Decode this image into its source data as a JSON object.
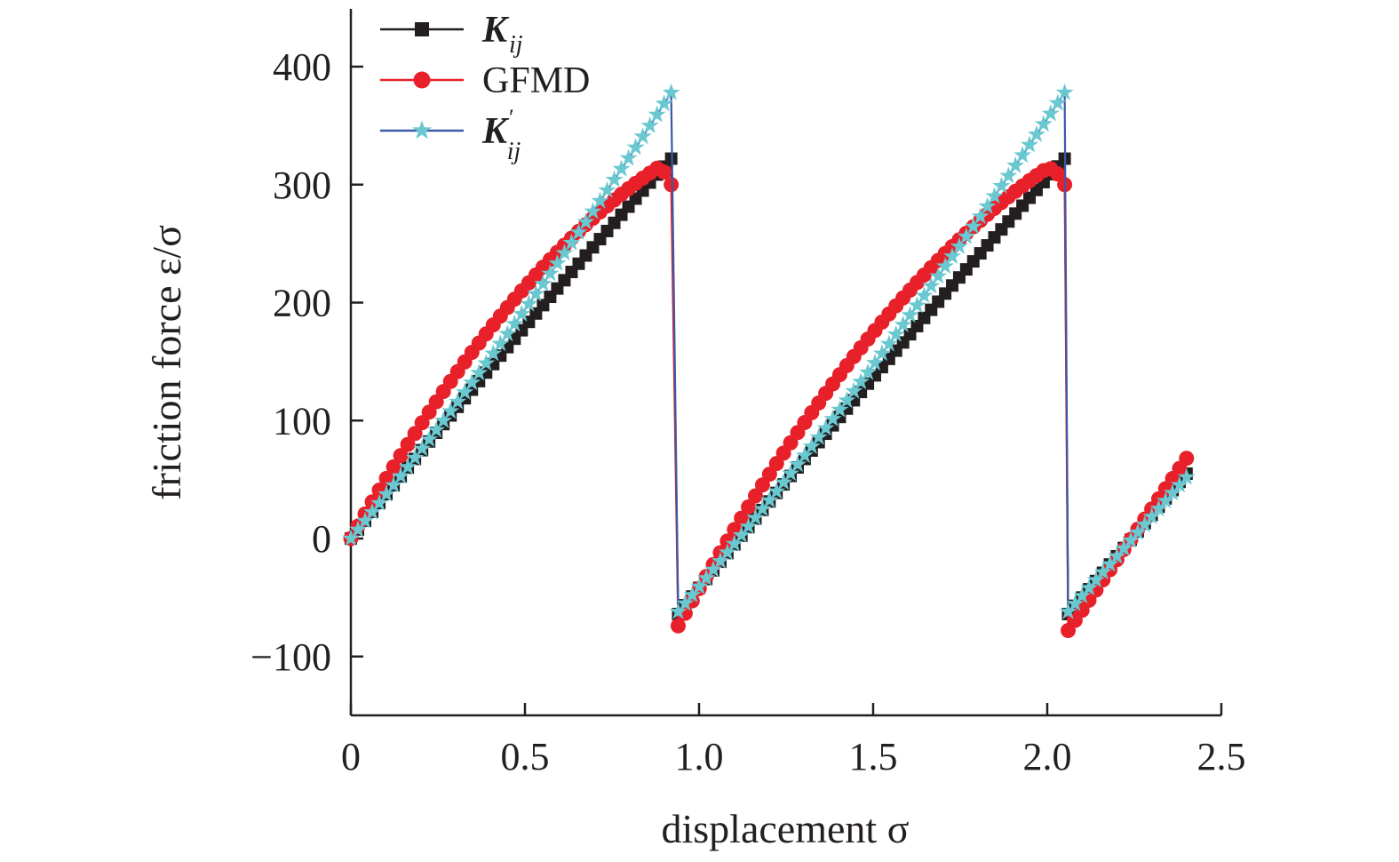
{
  "chart_data": {
    "type": "line",
    "xlabel": "displacement σ",
    "ylabel": "friction force ε/σ",
    "xlim": [
      0,
      2.5
    ],
    "ylim": [
      -150,
      450
    ],
    "xticks": [
      0,
      0.5,
      1.0,
      1.5,
      2.0,
      2.5
    ],
    "xtick_labels": [
      "0",
      "0.5",
      "1.0",
      "1.5",
      "2.0",
      "2.5"
    ],
    "yticks": [
      -100,
      0,
      100,
      200,
      300,
      400
    ],
    "ytick_labels": [
      "−100",
      "0",
      "100",
      "200",
      "300",
      "400"
    ],
    "grid": false,
    "legend_position": "top-left",
    "series": [
      {
        "name": "K_ij",
        "legend_main": "K",
        "legend_sub": "ij",
        "legend_sup": "",
        "color": "#231f20",
        "marker": "square",
        "segments": [
          {
            "x_start": 0.0,
            "x_end": 0.92,
            "n": 46,
            "y_start": 0,
            "y_end": 322,
            "curve": 0.06
          },
          {
            "x_start": 0.94,
            "x_end": 2.05,
            "n": 56,
            "y_start": -64,
            "y_end": 322,
            "curve": 0.06
          },
          {
            "x_start": 2.06,
            "x_end": 2.4,
            "n": 18,
            "y_start": -64,
            "y_end": 55,
            "curve": 0.0
          }
        ]
      },
      {
        "name": "GFMD",
        "legend_main": "GFMD",
        "legend_sub": "",
        "legend_sup": "",
        "color": "#e8202a",
        "line_color": "#e8202a",
        "marker": "circle",
        "segments": [
          {
            "x_start": 0.0,
            "x_end": 0.92,
            "n": 46,
            "y_start": 0,
            "y_end": 300,
            "curve": 0.45,
            "peak_x": 0.88,
            "peak_y": 314
          },
          {
            "x_start": 0.94,
            "x_end": 2.05,
            "n": 56,
            "y_start": -74,
            "y_end": 300,
            "curve": 0.45,
            "peak_x": 2.0,
            "peak_y": 314
          },
          {
            "x_start": 2.06,
            "x_end": 2.4,
            "n": 18,
            "y_start": -78,
            "y_end": 68,
            "curve": 0.0
          }
        ]
      },
      {
        "name": "K'_ij",
        "legend_main": "K",
        "legend_sub": "ij",
        "legend_sup": "′",
        "color": "#6ac8d0",
        "line_color": "#3a5aa8",
        "marker": "star",
        "segments": [
          {
            "x_start": 0.0,
            "x_end": 0.92,
            "n": 46,
            "y_start": 0,
            "y_end": 378,
            "curve": -0.12
          },
          {
            "x_start": 0.94,
            "x_end": 2.05,
            "n": 56,
            "y_start": -62,
            "y_end": 378,
            "curve": -0.12
          },
          {
            "x_start": 2.06,
            "x_end": 2.4,
            "n": 18,
            "y_start": -62,
            "y_end": 52,
            "curve": 0.0
          }
        ]
      }
    ]
  }
}
